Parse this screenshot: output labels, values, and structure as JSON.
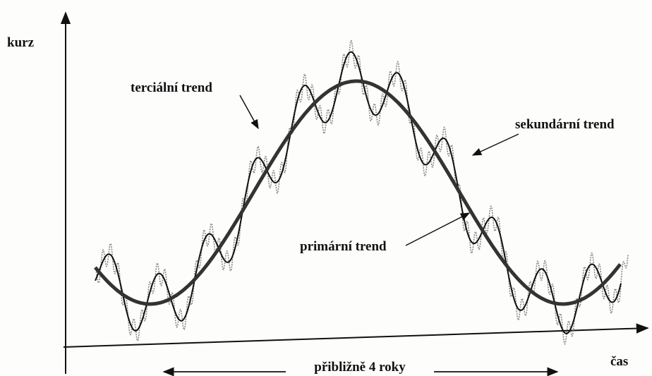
{
  "axes": {
    "y_label": "kurz",
    "x_label": "čas"
  },
  "labels": {
    "tertiary": "terciální trend",
    "secondary": "sekundární trend",
    "primary": "primární trend",
    "period": "přibližně 4 roky"
  }
}
